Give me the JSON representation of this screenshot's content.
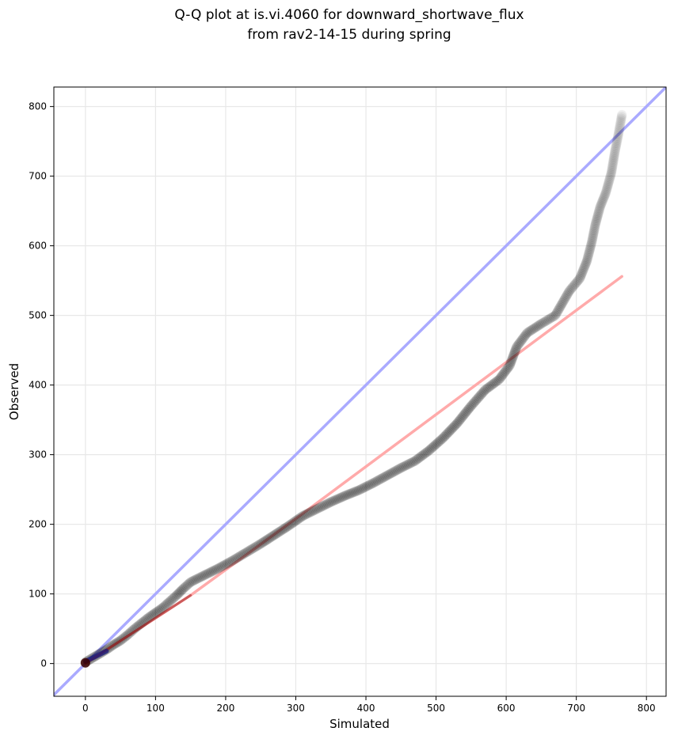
{
  "chart_data": {
    "type": "scatter",
    "title_lines": [
      "Q-Q plot at is.vi.4060 for downward_shortwave_flux",
      "from rav2-14-15 during spring"
    ],
    "xlabel": "Simulated",
    "ylabel": "Observed",
    "xlim": [
      -45,
      828
    ],
    "ylim": [
      -47,
      828
    ],
    "xticks": [
      0,
      100,
      200,
      300,
      400,
      500,
      600,
      700,
      800
    ],
    "yticks": [
      0,
      100,
      200,
      300,
      400,
      500,
      600,
      700,
      800
    ],
    "grid": true,
    "reference_line": {
      "color": "#aaaaff",
      "points": [
        [
          -45,
          -45
        ],
        [
          828,
          828
        ]
      ]
    },
    "fit_line": {
      "color": "#ffaaaa",
      "points": [
        [
          0,
          0
        ],
        [
          150,
          98
        ],
        [
          300,
          208
        ],
        [
          765,
          556
        ]
      ]
    },
    "low_highlight": {
      "color": "#1a1a80",
      "points": [
        [
          0,
          3
        ],
        [
          30,
          18
        ]
      ]
    },
    "quantile_curve": [
      [
        0,
        2
      ],
      [
        10,
        8
      ],
      [
        20,
        14
      ],
      [
        30,
        20
      ],
      [
        40,
        27
      ],
      [
        50,
        33
      ],
      [
        60,
        41
      ],
      [
        70,
        50
      ],
      [
        80,
        58
      ],
      [
        90,
        66
      ],
      [
        100,
        73
      ],
      [
        110,
        80
      ],
      [
        120,
        89
      ],
      [
        130,
        98
      ],
      [
        140,
        108
      ],
      [
        150,
        117
      ],
      [
        170,
        127
      ],
      [
        190,
        137
      ],
      [
        210,
        148
      ],
      [
        230,
        160
      ],
      [
        250,
        172
      ],
      [
        270,
        185
      ],
      [
        290,
        198
      ],
      [
        310,
        212
      ],
      [
        330,
        222
      ],
      [
        350,
        232
      ],
      [
        370,
        241
      ],
      [
        390,
        249
      ],
      [
        410,
        259
      ],
      [
        430,
        270
      ],
      [
        450,
        281
      ],
      [
        470,
        291
      ],
      [
        490,
        306
      ],
      [
        510,
        324
      ],
      [
        530,
        345
      ],
      [
        550,
        370
      ],
      [
        570,
        393
      ],
      [
        590,
        408
      ],
      [
        605,
        428
      ],
      [
        615,
        455
      ],
      [
        630,
        475
      ],
      [
        650,
        488
      ],
      [
        670,
        500
      ],
      [
        690,
        535
      ],
      [
        705,
        553
      ],
      [
        715,
        578
      ],
      [
        722,
        605
      ],
      [
        727,
        630
      ],
      [
        734,
        656
      ],
      [
        742,
        676
      ],
      [
        750,
        705
      ],
      [
        755,
        735
      ],
      [
        760,
        760
      ],
      [
        765,
        788
      ]
    ],
    "marker": {
      "color": "#000000",
      "alpha": 0.13
    }
  }
}
